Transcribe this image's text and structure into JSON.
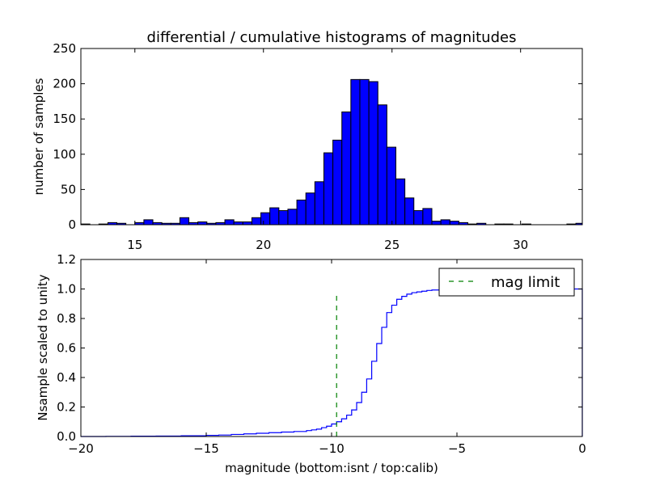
{
  "chart_data": [
    {
      "type": "bar",
      "title": "differential / cumulative histograms of magnitudes",
      "xlabel": "",
      "ylabel": "number of samples",
      "xlim": [
        12.9,
        32.4
      ],
      "ylim": [
        0,
        250
      ],
      "xticks": [
        15,
        20,
        25,
        30
      ],
      "yticks": [
        0,
        50,
        100,
        150,
        200,
        250
      ],
      "bar_color": "#0000ff",
      "bin_edges": [
        12.9,
        13.25,
        13.6,
        13.95,
        14.3,
        14.65,
        15.0,
        15.35,
        15.7,
        16.05,
        16.4,
        16.75,
        17.1,
        17.45,
        17.8,
        18.15,
        18.5,
        18.85,
        19.2,
        19.55,
        19.9,
        20.25,
        20.6,
        20.95,
        21.3,
        21.65,
        22.0,
        22.35,
        22.7,
        23.05,
        23.4,
        23.75,
        24.1,
        24.45,
        24.8,
        25.15,
        25.5,
        25.85,
        26.2,
        26.55,
        26.9,
        27.25,
        27.6,
        27.95,
        28.3,
        28.65,
        29.0,
        29.35,
        29.7,
        30.05,
        30.4,
        30.75,
        31.1,
        31.45,
        31.8,
        32.15,
        32.4
      ],
      "values": [
        1,
        0,
        1,
        3,
        2,
        0,
        3,
        7,
        3,
        2,
        2,
        10,
        3,
        4,
        2,
        3,
        7,
        4,
        4,
        10,
        17,
        24,
        20,
        22,
        35,
        45,
        61,
        102,
        120,
        160,
        206,
        206,
        203,
        170,
        110,
        65,
        38,
        20,
        23,
        5,
        7,
        5,
        3,
        1,
        2,
        0,
        1,
        1,
        0,
        1,
        0,
        0,
        0,
        0,
        1,
        2
      ]
    },
    {
      "type": "line",
      "title": "",
      "xlabel": "magnitude (bottom:isnt / top:calib)",
      "ylabel": "Nsample scaled to unity",
      "xlim": [
        -20,
        0
      ],
      "ylim": [
        0.0,
        1.2
      ],
      "xticks": [
        -20,
        -15,
        -10,
        -5,
        0
      ],
      "xtick_labels": [
        "−20",
        "−15",
        "−10",
        "−5",
        "0"
      ],
      "yticks": [
        0.0,
        0.2,
        0.4,
        0.6,
        0.8,
        1.0,
        1.2
      ],
      "ytick_labels": [
        "0.0",
        "0.2",
        "0.4",
        "0.6",
        "0.8",
        "1.0",
        "1.2"
      ],
      "series": [
        {
          "name": "",
          "style": "step",
          "color": "#0000ff",
          "x": [
            -20,
            -19,
            -18,
            -17,
            -16,
            -15,
            -14.5,
            -14,
            -13.5,
            -13,
            -12.5,
            -12,
            -11.5,
            -11,
            -10.8,
            -10.6,
            -10.4,
            -10.2,
            -10.0,
            -9.8,
            -9.6,
            -9.4,
            -9.2,
            -9.0,
            -8.8,
            -8.6,
            -8.4,
            -8.2,
            -8.0,
            -7.8,
            -7.6,
            -7.4,
            -7.2,
            -7.0,
            -6.8,
            -6.6,
            -6.4,
            -6.2,
            -6.0,
            -5.5,
            -5.0,
            -4.0,
            -3.0,
            -2.0,
            -1.0,
            -0.05,
            0
          ],
          "y": [
            0.0,
            0.001,
            0.002,
            0.003,
            0.005,
            0.008,
            0.01,
            0.014,
            0.018,
            0.022,
            0.026,
            0.03,
            0.034,
            0.04,
            0.045,
            0.05,
            0.06,
            0.07,
            0.085,
            0.1,
            0.12,
            0.145,
            0.18,
            0.23,
            0.3,
            0.39,
            0.51,
            0.63,
            0.74,
            0.84,
            0.89,
            0.93,
            0.95,
            0.965,
            0.975,
            0.98,
            0.985,
            0.99,
            0.993,
            0.995,
            0.997,
            0.998,
            0.999,
            0.9995,
            1.0,
            1.0,
            1.0
          ]
        },
        {
          "name": "mag limit",
          "style": "dashed",
          "color": "#008000",
          "x": [
            -9.8,
            -9.8
          ],
          "y": [
            0.0,
            0.97
          ]
        }
      ],
      "legend_position": "top-right",
      "legend_label": "mag limit"
    }
  ]
}
